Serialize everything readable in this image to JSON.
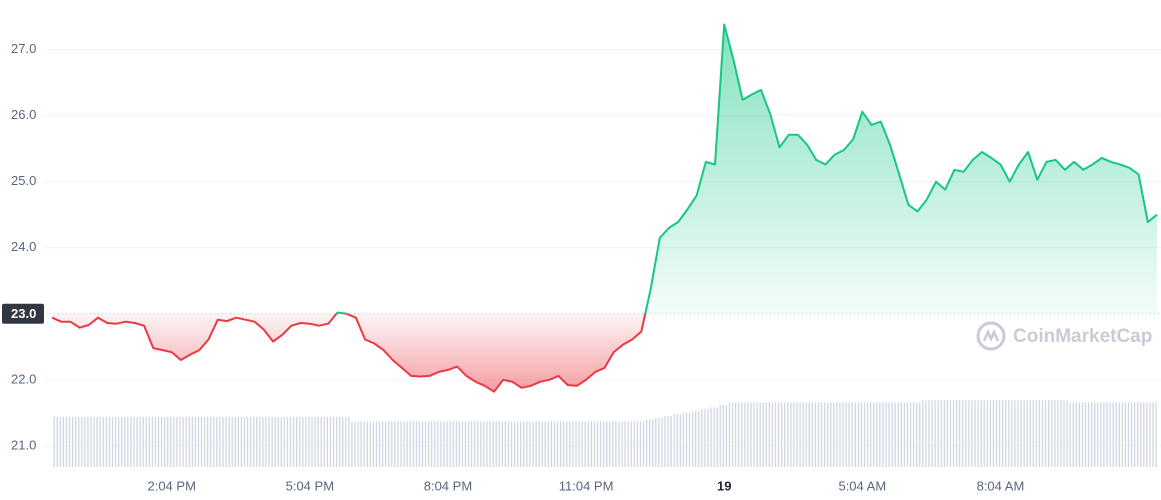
{
  "chart_data": {
    "type": "baseline-line",
    "baseline": 23,
    "up_color": "#16c784",
    "down_color": "#ea3943",
    "volume_color": "#cfd6e4",
    "grid": true,
    "watermark": "CoinMarketCap",
    "ylim": [
      20.68,
      27.6
    ],
    "yticks": [
      {
        "value": 21,
        "label": "21.0"
      },
      {
        "value": 22,
        "label": "22.0"
      },
      {
        "value": 23,
        "label": "23.0"
      },
      {
        "value": 24,
        "label": "24.0"
      },
      {
        "value": 25,
        "label": "25.0"
      },
      {
        "value": 26,
        "label": "26.0"
      },
      {
        "value": 27,
        "label": "27.0"
      }
    ],
    "categories": [
      null,
      null,
      null,
      null,
      null,
      null,
      null,
      null,
      null,
      null,
      null,
      null,
      null,
      "2:04 PM",
      null,
      null,
      null,
      null,
      null,
      null,
      null,
      null,
      null,
      null,
      null,
      null,
      null,
      null,
      "5:04 PM",
      null,
      null,
      null,
      null,
      null,
      null,
      null,
      null,
      null,
      null,
      null,
      null,
      null,
      null,
      "8:04 PM",
      null,
      null,
      null,
      null,
      null,
      null,
      null,
      null,
      null,
      null,
      null,
      null,
      null,
      null,
      "11:04 PM",
      null,
      null,
      null,
      null,
      null,
      null,
      null,
      null,
      null,
      null,
      null,
      null,
      null,
      null,
      "19",
      null,
      null,
      null,
      null,
      null,
      null,
      null,
      null,
      null,
      null,
      null,
      null,
      null,
      null,
      "5:04 AM",
      null,
      null,
      null,
      null,
      null,
      null,
      null,
      null,
      null,
      null,
      null,
      null,
      null,
      null,
      "8:04 AM",
      null,
      null,
      null,
      null,
      null,
      null,
      null,
      null,
      null,
      null,
      null,
      null,
      null,
      null,
      null,
      null,
      null
    ],
    "values": [
      22.94,
      22.88,
      22.88,
      22.79,
      22.83,
      22.94,
      22.86,
      22.85,
      22.88,
      22.86,
      22.82,
      22.48,
      22.45,
      22.42,
      22.3,
      22.38,
      22.45,
      22.61,
      22.91,
      22.89,
      22.94,
      22.91,
      22.88,
      22.76,
      22.58,
      22.68,
      22.82,
      22.86,
      22.85,
      22.82,
      22.85,
      23.02,
      23.0,
      22.94,
      22.61,
      22.55,
      22.45,
      22.3,
      22.18,
      22.06,
      22.05,
      22.06,
      22.12,
      22.15,
      22.2,
      22.06,
      21.97,
      21.91,
      21.82,
      22.0,
      21.97,
      21.88,
      21.91,
      21.97,
      22.0,
      22.06,
      21.92,
      21.91,
      22.0,
      22.12,
      22.18,
      22.42,
      22.53,
      22.61,
      22.73,
      23.36,
      24.15,
      24.3,
      24.39,
      24.58,
      24.79,
      25.3,
      25.26,
      27.38,
      26.85,
      26.24,
      26.32,
      26.39,
      26.02,
      25.52,
      25.71,
      25.71,
      25.56,
      25.33,
      25.26,
      25.41,
      25.48,
      25.64,
      26.06,
      25.86,
      25.91,
      25.56,
      25.11,
      24.65,
      24.55,
      24.73,
      25.0,
      24.88,
      25.18,
      25.15,
      25.33,
      25.45,
      25.36,
      25.26,
      25.0,
      25.26,
      25.45,
      25.03,
      25.3,
      25.33,
      25.18,
      25.3,
      25.18,
      25.26,
      25.36,
      25.3,
      25.26,
      25.21,
      25.11,
      24.39,
      24.5
    ],
    "volume": [
      21.44,
      21.44,
      21.44,
      21.44,
      21.44,
      21.44,
      21.44,
      21.44,
      21.44,
      21.44,
      21.44,
      21.44,
      21.44,
      21.44,
      21.44,
      21.44,
      21.44,
      21.44,
      21.44,
      21.44,
      21.44,
      21.44,
      21.44,
      21.44,
      21.44,
      21.44,
      21.44,
      21.44,
      21.44,
      21.44,
      21.44,
      21.44,
      21.44,
      21.37,
      21.37,
      21.37,
      21.37,
      21.37,
      21.37,
      21.37,
      21.37,
      21.37,
      21.37,
      21.37,
      21.37,
      21.37,
      21.37,
      21.37,
      21.37,
      21.37,
      21.37,
      21.37,
      21.37,
      21.37,
      21.37,
      21.37,
      21.37,
      21.37,
      21.37,
      21.37,
      21.37,
      21.37,
      21.37,
      21.37,
      21.37,
      21.4,
      21.42,
      21.45,
      21.48,
      21.5,
      21.53,
      21.56,
      21.58,
      21.62,
      21.66,
      21.66,
      21.66,
      21.66,
      21.66,
      21.66,
      21.66,
      21.66,
      21.66,
      21.66,
      21.66,
      21.66,
      21.66,
      21.66,
      21.66,
      21.66,
      21.66,
      21.66,
      21.66,
      21.66,
      21.66,
      21.69,
      21.69,
      21.69,
      21.69,
      21.69,
      21.69,
      21.69,
      21.69,
      21.69,
      21.69,
      21.69,
      21.69,
      21.69,
      21.69,
      21.69,
      21.69,
      21.66,
      21.66,
      21.66,
      21.66,
      21.66,
      21.66,
      21.66,
      21.66,
      21.66,
      21.66
    ]
  }
}
